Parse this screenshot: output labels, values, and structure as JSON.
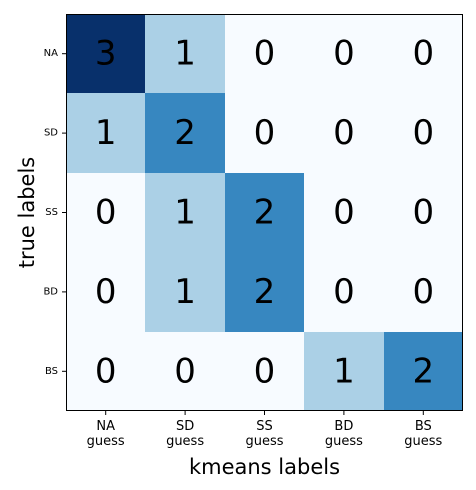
{
  "chart_data": {
    "type": "heatmap",
    "title": "",
    "xlabel": "kmeans labels",
    "ylabel": "true labels",
    "x_categories": [
      [
        "NA",
        "guess"
      ],
      [
        "SD",
        "guess"
      ],
      [
        "SS",
        "guess"
      ],
      [
        "BD",
        "guess"
      ],
      [
        "BS",
        "guess"
      ]
    ],
    "y_categories": [
      "NA",
      "SD",
      "SS",
      "BD",
      "BS"
    ],
    "values": [
      [
        3,
        1,
        0,
        0,
        0
      ],
      [
        1,
        2,
        0,
        0,
        0
      ],
      [
        0,
        1,
        2,
        0,
        0
      ],
      [
        0,
        1,
        2,
        0,
        0
      ],
      [
        0,
        0,
        0,
        1,
        2
      ]
    ],
    "colormap": "Blues",
    "value_range": [
      0,
      3
    ],
    "cell_colors": {
      "0": "#f7fbff",
      "1": "#abd0e6",
      "2": "#3787c0",
      "3": "#08306b"
    },
    "text_color": "#000000",
    "text_color_on_dark": "#000000",
    "grid": false
  }
}
